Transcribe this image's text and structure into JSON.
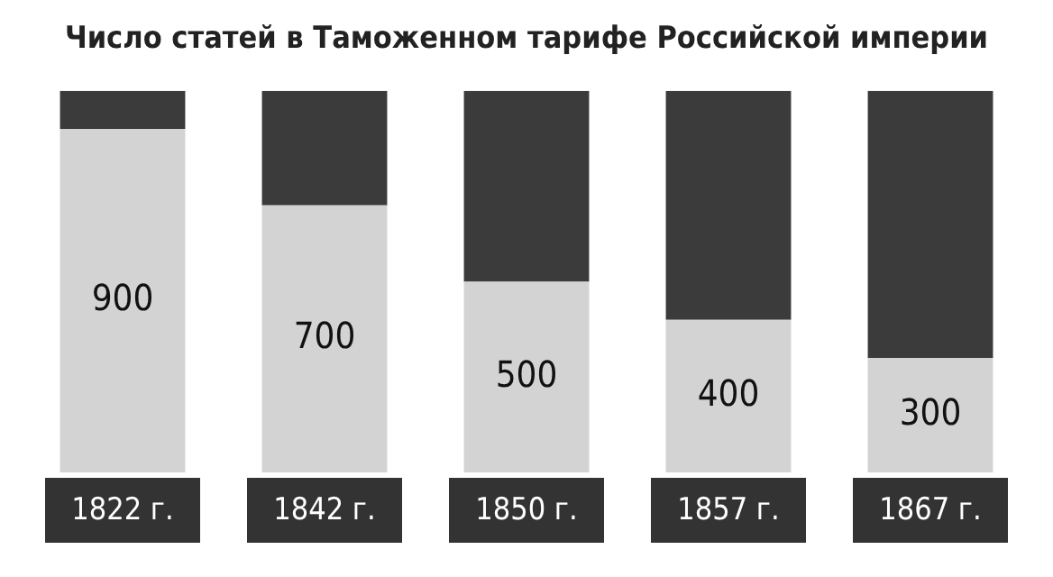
{
  "chart_data": {
    "type": "bar",
    "title": "Число статей в Таможенном тарифе Российской империи",
    "categories": [
      "1822 г.",
      "1842 г.",
      "1850 г.",
      "1857 г.",
      "1867 г."
    ],
    "stacked": true,
    "legend": false,
    "series": [
      {
        "color": "#d3d3d3",
        "values": [
          900,
          700,
          500,
          400,
          300
        ],
        "value_labels": [
          "900",
          "700",
          "500",
          "400",
          "300"
        ]
      },
      {
        "color": "#3b3b3b",
        "values": [
          100,
          300,
          500,
          600,
          700
        ]
      }
    ]
  }
}
